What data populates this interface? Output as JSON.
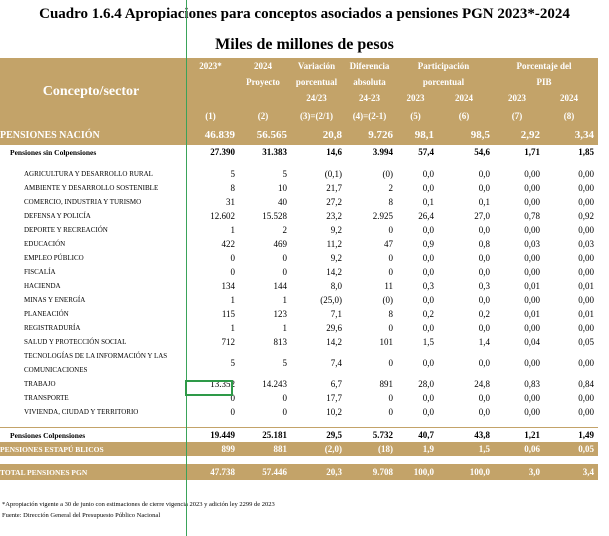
{
  "title": "Cuadro 1.6.4 Apropiaciones para conceptos asociados a pensiones PGN 2023*-2024",
  "subtitle": "Miles de millones de pesos",
  "header": {
    "concept": "Concepto/sector",
    "col_2023": "2023*",
    "col_2024a": "2024",
    "col_2024b": "Proyecto",
    "var_a": "Variación",
    "var_b": "porcentual",
    "var_c": "24/23",
    "dif_a": "Diferencia",
    "dif_b": "absoluta",
    "dif_c": "24-23",
    "part_a": "Participación",
    "part_b": "porcentual",
    "pib_a": "Porcentaje del",
    "pib_b": "PIB",
    "y2023": "2023",
    "y2024": "2024",
    "n1": "(1)",
    "n2": "(2)",
    "n3": "(3)=(2/1)",
    "n4": "(4)=(2-1)",
    "n5": "(5)",
    "n6": "(6)",
    "n7": "(7)",
    "n8": "(8)"
  },
  "pensiones_nacion": [
    "PENSIONES NACIÓN",
    "46.839",
    "56.565",
    "20,8",
    "9.726",
    "98,1",
    "98,5",
    "2,92",
    "3,34"
  ],
  "sin_colpensiones": [
    "Pensiones sin Colpensiones",
    "27.390",
    "31.383",
    "14,6",
    "3.994",
    "57,4",
    "54,6",
    "1,71",
    "1,85"
  ],
  "sectors": [
    [
      "AGRICULTURA Y DESARROLLO RURAL",
      "5",
      "5",
      "(0,1)",
      "(0)",
      "0,0",
      "0,0",
      "0,00",
      "0,00"
    ],
    [
      "AMBIENTE Y DESARROLLO SOSTENIBLE",
      "8",
      "10",
      "21,7",
      "2",
      "0,0",
      "0,0",
      "0,00",
      "0,00"
    ],
    [
      "COMERCIO, INDUSTRIA Y TURISMO",
      "31",
      "40",
      "27,2",
      "8",
      "0,1",
      "0,1",
      "0,00",
      "0,00"
    ],
    [
      "DEFENSA Y POLICÍA",
      "12.602",
      "15.528",
      "23,2",
      "2.925",
      "26,4",
      "27,0",
      "0,78",
      "0,92"
    ],
    [
      "DEPORTE Y RECREACIÓN",
      "1",
      "2",
      "9,2",
      "0",
      "0,0",
      "0,0",
      "0,00",
      "0,00"
    ],
    [
      "EDUCACIÓN",
      "422",
      "469",
      "11,2",
      "47",
      "0,9",
      "0,8",
      "0,03",
      "0,03"
    ],
    [
      "EMPLEO PÚBLICO",
      "0",
      "0",
      "9,2",
      "0",
      "0,0",
      "0,0",
      "0,00",
      "0,00"
    ],
    [
      "FISCALÍA",
      "0",
      "0",
      "14,2",
      "0",
      "0,0",
      "0,0",
      "0,00",
      "0,00"
    ],
    [
      "HACIENDA",
      "134",
      "144",
      "8,0",
      "11",
      "0,3",
      "0,3",
      "0,01",
      "0,01"
    ],
    [
      "MINAS Y ENERGÍA",
      "1",
      "1",
      "(25,0)",
      "(0)",
      "0,0",
      "0,0",
      "0,00",
      "0,00"
    ],
    [
      "PLANEACIÓN",
      "115",
      "123",
      "7,1",
      "8",
      "0,2",
      "0,2",
      "0,01",
      "0,01"
    ],
    [
      "REGISTRADURÍA",
      "1",
      "1",
      "29,6",
      "0",
      "0,0",
      "0,0",
      "0,00",
      "0,00"
    ],
    [
      "SALUD Y PROTECCIÓN SOCIAL",
      "712",
      "813",
      "14,2",
      "101",
      "1,5",
      "1,4",
      "0,04",
      "0,05"
    ]
  ],
  "tic": [
    "TECNOLOGÍAS DE LA INFORMACIÓN Y LAS COMUNICACIONES",
    "5",
    "5",
    "7,4",
    "0",
    "0,0",
    "0,0",
    "0,00",
    "0,00"
  ],
  "sectors2": [
    [
      "TRABAJO",
      "13.352",
      "14.243",
      "6,7",
      "891",
      "28,0",
      "24,8",
      "0,83",
      "0,84"
    ],
    [
      "TRANSPORTE",
      "0",
      "0",
      "17,7",
      "0",
      "0,0",
      "0,0",
      "0,00",
      "0,00"
    ],
    [
      "VIVIENDA, CIUDAD Y TERRITORIO",
      "0",
      "0",
      "10,2",
      "0",
      "0,0",
      "0,0",
      "0,00",
      "0,00"
    ]
  ],
  "colpensiones": [
    "Pensiones Colpensiones",
    "19.449",
    "25.181",
    "29,5",
    "5.732",
    "40,7",
    "43,8",
    "1,21",
    "1,49"
  ],
  "estapublicos": [
    "PENSIONES ESTAPÚ BLICOS",
    "899",
    "881",
    "(2,0)",
    "(18)",
    "1,9",
    "1,5",
    "0,06",
    "0,05"
  ],
  "total": [
    "TOTAL PENSIONES PGN",
    "47.738",
    "57.446",
    "20,3",
    "9.708",
    "100,0",
    "100,0",
    "3,0",
    "3,4"
  ],
  "notes": {
    "n1": "*Apropiación vigente a 30 de junio con estimaciones de cierre vigencia 2023 y adición ley 2299 de 2023",
    "n2": "Fuente: Dirección General del Presupuesto Público Nacional"
  }
}
